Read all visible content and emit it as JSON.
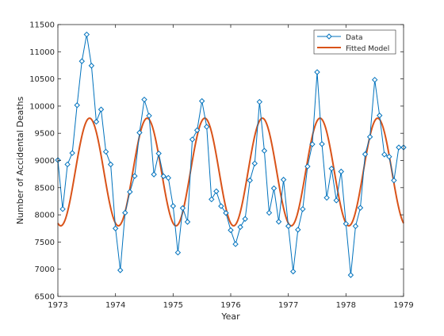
{
  "chart_data": {
    "type": "line",
    "xlabel": "Year",
    "ylabel": "Number of Accidental Deaths",
    "xlim": [
      1973,
      1979
    ],
    "ylim": [
      6500,
      11500
    ],
    "xticks": [
      1973,
      1974,
      1975,
      1976,
      1977,
      1978,
      1979
    ],
    "yticks": [
      6500,
      7000,
      7500,
      8000,
      8500,
      9000,
      9500,
      10000,
      10500,
      11000,
      11500
    ],
    "grid": false,
    "legend_position": "top-right",
    "series": [
      {
        "name": "Data",
        "color": "#0072BD",
        "marker": "diamond",
        "x": [
          1973.0,
          1973.0833,
          1973.1667,
          1973.25,
          1973.3333,
          1973.4167,
          1973.5,
          1973.5833,
          1973.6667,
          1973.75,
          1973.8333,
          1973.9167,
          1974.0,
          1974.0833,
          1974.1667,
          1974.25,
          1974.3333,
          1974.4167,
          1974.5,
          1974.5833,
          1974.6667,
          1974.75,
          1974.8333,
          1974.9167,
          1975.0,
          1975.0833,
          1975.1667,
          1975.25,
          1975.3333,
          1975.4167,
          1975.5,
          1975.5833,
          1975.6667,
          1975.75,
          1975.8333,
          1975.9167,
          1976.0,
          1976.0833,
          1976.1667,
          1976.25,
          1976.3333,
          1976.4167,
          1976.5,
          1976.5833,
          1976.6667,
          1976.75,
          1976.8333,
          1976.9167,
          1977.0,
          1977.0833,
          1977.1667,
          1977.25,
          1977.3333,
          1977.4167,
          1977.5,
          1977.5833,
          1977.6667,
          1977.75,
          1977.8333,
          1977.9167,
          1978.0,
          1978.0833,
          1978.1667,
          1978.25,
          1978.3333,
          1978.4167,
          1978.5,
          1978.5833,
          1978.6667,
          1978.75,
          1978.8333,
          1978.9167,
          1979.0
        ],
        "values": [
          9007,
          8106,
          8928,
          9137,
          10017,
          10826,
          11317,
          10744,
          9713,
          9938,
          9161,
          8927,
          7750,
          6981,
          8038,
          8422,
          8714,
          9512,
          10120,
          9823,
          8743,
          9129,
          8710,
          8680,
          8162,
          7306,
          8124,
          7870,
          9387,
          9556,
          10093,
          9620,
          8285,
          8433,
          8160,
          8034,
          7717,
          7461,
          7776,
          7925,
          8634,
          8945,
          10078,
          9179,
          8037,
          8488,
          7874,
          8647,
          7792,
          6957,
          7726,
          8106,
          8890,
          9299,
          10625,
          9302,
          8314,
          8850,
          8265,
          8796,
          7836,
          6892,
          7791,
          8129,
          9115,
          9434,
          10484,
          9827,
          9110,
          9070,
          8633,
          9240,
          9240
        ]
      },
      {
        "name": "Fitted Model",
        "color": "#D95319",
        "marker": "none",
        "model": {
          "mean": 8788,
          "amplitude": 990,
          "period_years": 1,
          "peak_phase": 0.55,
          "flat_trough_level": 7800
        }
      }
    ]
  }
}
